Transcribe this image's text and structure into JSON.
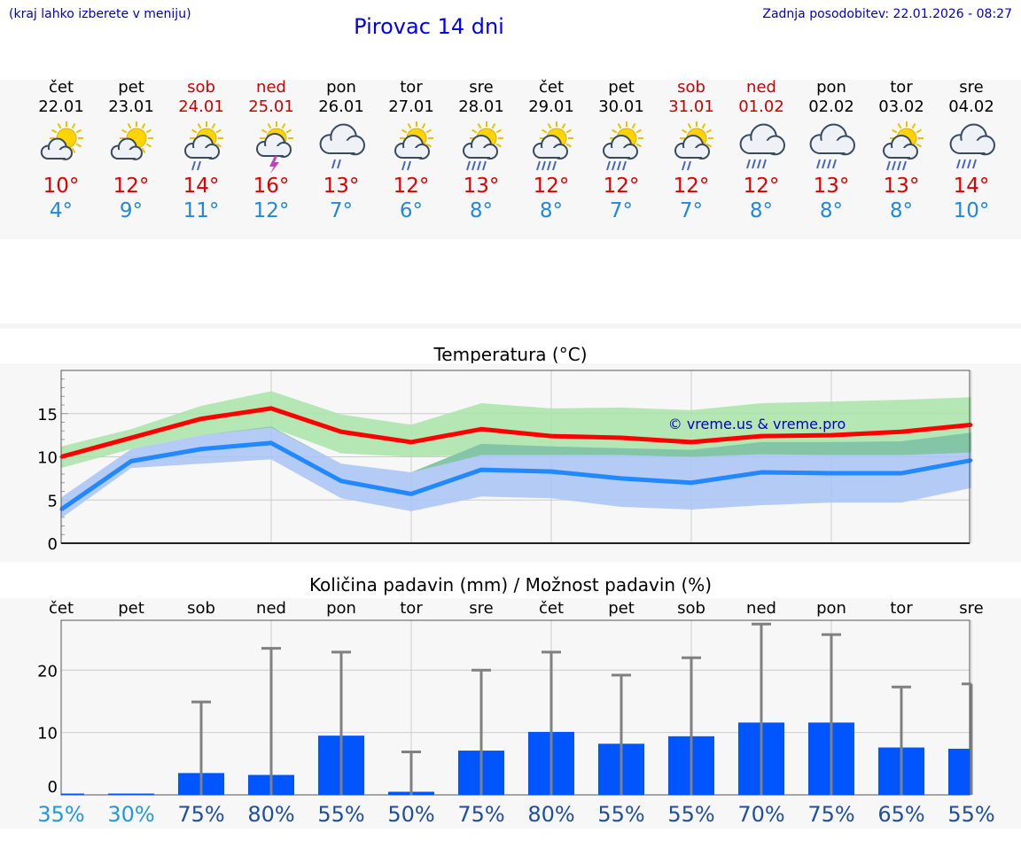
{
  "header": {
    "left_note": "(kraj lahko izberete v meniju)",
    "title": "Pirovac 14 dni",
    "updated": "Zadnja posodobitev: 22.01.2026 - 08:27"
  },
  "days": [
    {
      "name": "čet",
      "date": "22.01",
      "weekend": false,
      "icon": "sun-cloud-icon",
      "tmax": "10°",
      "tmin": "4°"
    },
    {
      "name": "pet",
      "date": "23.01",
      "weekend": false,
      "icon": "sun-cloud-icon",
      "tmax": "12°",
      "tmin": "9°"
    },
    {
      "name": "sob",
      "date": "24.01",
      "weekend": true,
      "icon": "sun-cloud-rain-icon",
      "tmax": "14°",
      "tmin": "11°"
    },
    {
      "name": "ned",
      "date": "25.01",
      "weekend": true,
      "icon": "sun-cloud-thunder-icon",
      "tmax": "16°",
      "tmin": "12°"
    },
    {
      "name": "pon",
      "date": "26.01",
      "weekend": false,
      "icon": "cloud-rain-icon",
      "tmax": "13°",
      "tmin": "7°"
    },
    {
      "name": "tor",
      "date": "27.01",
      "weekend": false,
      "icon": "sun-cloud-rain-icon",
      "tmax": "12°",
      "tmin": "6°"
    },
    {
      "name": "sre",
      "date": "28.01",
      "weekend": false,
      "icon": "sun-cloud-heavy-rain-icon",
      "tmax": "13°",
      "tmin": "8°"
    },
    {
      "name": "čet",
      "date": "29.01",
      "weekend": false,
      "icon": "sun-cloud-heavy-rain-icon",
      "tmax": "12°",
      "tmin": "8°"
    },
    {
      "name": "pet",
      "date": "30.01",
      "weekend": false,
      "icon": "sun-cloud-heavy-rain-icon",
      "tmax": "12°",
      "tmin": "7°"
    },
    {
      "name": "sob",
      "date": "31.01",
      "weekend": true,
      "icon": "sun-cloud-rain-icon",
      "tmax": "12°",
      "tmin": "7°"
    },
    {
      "name": "ned",
      "date": "01.02",
      "weekend": true,
      "icon": "cloud-heavy-rain-icon",
      "tmax": "12°",
      "tmin": "8°"
    },
    {
      "name": "pon",
      "date": "02.02",
      "weekend": false,
      "icon": "cloud-heavy-rain-icon",
      "tmax": "13°",
      "tmin": "8°"
    },
    {
      "name": "tor",
      "date": "03.02",
      "weekend": false,
      "icon": "sun-cloud-heavy-rain-icon",
      "tmax": "13°",
      "tmin": "8°"
    },
    {
      "name": "sre",
      "date": "04.02",
      "weekend": false,
      "icon": "cloud-heavy-rain-icon",
      "tmax": "14°",
      "tmin": "10°"
    }
  ],
  "colors": {
    "max_line": "#ff0000",
    "max_band": "#a8e4a8",
    "min_line": "#2288ff",
    "min_band": "#a8c4f4",
    "overlap_band": "#80c4a0",
    "bar": "#0055ff",
    "whisker": "#808080",
    "weekend": "#cc0000",
    "pct_low": "#2299dd",
    "pct_high": "#1f4fa0"
  },
  "chart_data": [
    {
      "type": "line",
      "title": "Temperatura (°C)",
      "watermark": "© vreme.us & vreme.pro",
      "x": [
        0,
        1,
        2,
        3,
        4,
        5,
        6,
        7,
        8,
        9,
        10,
        11,
        12,
        13
      ],
      "ylim": [
        0,
        20
      ],
      "yticks": [
        0,
        5,
        10,
        15
      ],
      "series": [
        {
          "name": "max",
          "values": [
            10,
            12.2,
            14.4,
            15.6,
            12.9,
            11.7,
            13.2,
            12.4,
            12.2,
            11.7,
            12.4,
            12.5,
            12.9,
            13.7
          ],
          "band_low": [
            8.7,
            10.9,
            12.5,
            13.4,
            10.4,
            10.0,
            10.2,
            10.2,
            10.2,
            10.0,
            10.3,
            10.2,
            10.2,
            10.5
          ],
          "band_high": [
            11.2,
            13.2,
            15.9,
            17.6,
            14.9,
            13.7,
            16.2,
            15.6,
            15.7,
            15.4,
            16.2,
            16.4,
            16.6,
            16.9
          ]
        },
        {
          "name": "min",
          "values": [
            3.9,
            9.5,
            10.9,
            11.6,
            7.2,
            5.7,
            8.5,
            8.3,
            7.5,
            7.0,
            8.2,
            8.1,
            8.1,
            9.6
          ],
          "band_low": [
            2.9,
            8.7,
            9.2,
            9.7,
            5.2,
            3.7,
            5.4,
            5.2,
            4.2,
            3.9,
            4.4,
            4.7,
            4.7,
            6.4
          ],
          "band_high": [
            5.3,
            10.9,
            12.5,
            13.5,
            9.2,
            8.2,
            11.5,
            11.2,
            11.0,
            10.8,
            11.7,
            11.7,
            11.8,
            12.8
          ]
        }
      ]
    },
    {
      "type": "bar",
      "title": "Količina padavin (mm) / Možnost padavin (%)",
      "categories": [
        "čet",
        "pet",
        "sob",
        "ned",
        "pon",
        "tor",
        "sre",
        "čet",
        "pet",
        "sob",
        "ned",
        "pon",
        "tor",
        "sre"
      ],
      "values": [
        0,
        0,
        3.5,
        3.2,
        9.5,
        0.5,
        7.1,
        10.1,
        8.2,
        9.4,
        11.6,
        11.6,
        7.6,
        7.4
      ],
      "max_values": [
        0,
        0,
        14.9,
        23.5,
        22.9,
        6.9,
        20.0,
        22.9,
        19.2,
        22.0,
        27.4,
        25.7,
        17.3,
        17.8
      ],
      "ylim": [
        0,
        28
      ],
      "yticks": [
        0,
        10,
        20
      ],
      "probability": [
        "35%",
        "30%",
        "75%",
        "80%",
        "55%",
        "50%",
        "75%",
        "80%",
        "55%",
        "55%",
        "70%",
        "75%",
        "65%",
        "55%"
      ]
    }
  ]
}
